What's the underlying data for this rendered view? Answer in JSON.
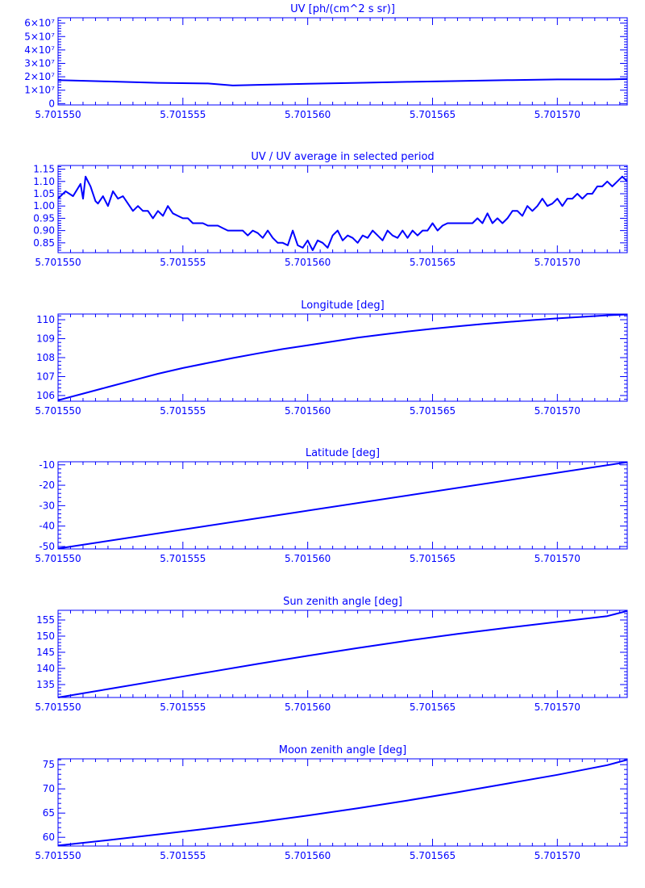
{
  "chart_data": [
    {
      "type": "line",
      "title": "UV [ph/(cm^2 s sr)]",
      "xlabel": "",
      "ylabel": "",
      "x_ticks": [
        "5.701550",
        "5.701555",
        "5.701560",
        "5.701565",
        "5.701570"
      ],
      "x_tick_values": [
        5.70155,
        5.701555,
        5.70156,
        5.701565,
        5.70157
      ],
      "xlim": [
        5.70155,
        5.7015728
      ],
      "ylim": [
        -1000000,
        64000000
      ],
      "y_ticks": [
        "0",
        "1×10⁷",
        "2×10⁷",
        "3×10⁷",
        "4×10⁷",
        "5×10⁷",
        "6×10⁷"
      ],
      "y_tick_values": [
        0,
        10000000,
        20000000,
        30000000,
        40000000,
        50000000,
        60000000
      ],
      "color": "#0000ff",
      "series": [
        {
          "x": [
            5.70155,
            5.701552,
            5.701554,
            5.701556,
            5.701557,
            5.701558,
            5.70156,
            5.701562,
            5.701564,
            5.701566,
            5.701568,
            5.70157,
            5.701572,
            5.7015728
          ],
          "y": [
            17500000,
            16500000,
            15500000,
            15000000,
            13500000,
            14000000,
            14800000,
            15500000,
            16200000,
            16800000,
            17500000,
            18000000,
            18000000,
            18300000
          ]
        }
      ]
    },
    {
      "type": "line",
      "title": "UV / UV average in selected period",
      "xlabel": "",
      "ylabel": "",
      "x_ticks": [
        "5.701550",
        "5.701555",
        "5.701560",
        "5.701565",
        "5.701570"
      ],
      "x_tick_values": [
        5.70155,
        5.701555,
        5.70156,
        5.701565,
        5.70157
      ],
      "xlim": [
        5.70155,
        5.7015728
      ],
      "ylim": [
        0.81,
        1.165
      ],
      "y_ticks": [
        "0.85",
        "0.90",
        "0.95",
        "1.00",
        "1.05",
        "1.10",
        "1.15"
      ],
      "y_tick_values": [
        0.85,
        0.9,
        0.95,
        1.0,
        1.05,
        1.1,
        1.15
      ],
      "color": "#0000ff",
      "series": [
        {
          "x": [
            5.70155,
            5.7015503,
            5.7015506,
            5.7015509,
            5.701551,
            5.7015511,
            5.7015513,
            5.7015515,
            5.7015516,
            5.7015518,
            5.701552,
            5.7015522,
            5.7015524,
            5.7015526,
            5.7015528,
            5.701553,
            5.7015532,
            5.7015534,
            5.7015536,
            5.7015538,
            5.701554,
            5.7015542,
            5.7015544,
            5.7015546,
            5.7015548,
            5.701555,
            5.7015552,
            5.7015554,
            5.7015556,
            5.7015558,
            5.701556,
            5.7015562,
            5.7015564,
            5.7015566,
            5.7015568,
            5.701557,
            5.7015572,
            5.7015574,
            5.7015576,
            5.7015578,
            5.701558,
            5.7015582,
            5.7015584,
            5.7015586,
            5.7015588,
            5.701559,
            5.7015592,
            5.7015594,
            5.7015596,
            5.7015598,
            5.70156,
            5.7015602,
            5.7015604,
            5.7015606,
            5.7015608,
            5.701561,
            5.7015612,
            5.7015614,
            5.7015616,
            5.7015618,
            5.701562,
            5.7015622,
            5.7015624,
            5.7015626,
            5.7015628,
            5.701563,
            5.7015632,
            5.7015634,
            5.7015636,
            5.7015638,
            5.701564,
            5.7015642,
            5.7015644,
            5.7015646,
            5.7015648,
            5.701565,
            5.7015652,
            5.7015654,
            5.7015656,
            5.7015658,
            5.701566,
            5.7015662,
            5.7015664,
            5.7015666,
            5.7015668,
            5.701567,
            5.7015672,
            5.7015674,
            5.7015676,
            5.7015678,
            5.701568,
            5.7015682,
            5.7015684,
            5.7015686,
            5.7015688,
            5.701569,
            5.7015692,
            5.7015694,
            5.7015696,
            5.7015698,
            5.70157,
            5.7015702,
            5.7015704,
            5.7015706,
            5.7015708,
            5.701571,
            5.7015712,
            5.7015714,
            5.7015716,
            5.7015718,
            5.701572,
            5.7015722,
            5.7015724,
            5.7015726,
            5.7015728
          ],
          "y": [
            1.03,
            1.06,
            1.04,
            1.09,
            1.03,
            1.12,
            1.08,
            1.02,
            1.01,
            1.04,
            1.0,
            1.06,
            1.03,
            1.04,
            1.01,
            0.98,
            1.0,
            0.98,
            0.98,
            0.95,
            0.98,
            0.96,
            1.0,
            0.97,
            0.96,
            0.95,
            0.95,
            0.93,
            0.93,
            0.93,
            0.92,
            0.92,
            0.92,
            0.91,
            0.9,
            0.9,
            0.9,
            0.9,
            0.88,
            0.9,
            0.89,
            0.87,
            0.9,
            0.87,
            0.85,
            0.85,
            0.84,
            0.9,
            0.84,
            0.83,
            0.86,
            0.82,
            0.86,
            0.85,
            0.83,
            0.88,
            0.9,
            0.86,
            0.88,
            0.87,
            0.85,
            0.88,
            0.87,
            0.9,
            0.88,
            0.86,
            0.9,
            0.88,
            0.87,
            0.9,
            0.87,
            0.9,
            0.88,
            0.9,
            0.9,
            0.93,
            0.9,
            0.92,
            0.93,
            0.93,
            0.93,
            0.93,
            0.93,
            0.93,
            0.95,
            0.93,
            0.97,
            0.93,
            0.95,
            0.93,
            0.95,
            0.98,
            0.98,
            0.96,
            1.0,
            0.98,
            1.0,
            1.03,
            1.0,
            1.01,
            1.03,
            1.0,
            1.03,
            1.03,
            1.05,
            1.03,
            1.05,
            1.05,
            1.08,
            1.08,
            1.1,
            1.08,
            1.1,
            1.12,
            1.1
          ],
          "_comment_visible": ""
        }
      ]
    },
    {
      "type": "line",
      "title": "Longitude [deg]",
      "xlabel": "",
      "ylabel": "",
      "x_ticks": [
        "5.701550",
        "5.701555",
        "5.701560",
        "5.701565",
        "5.701570"
      ],
      "x_tick_values": [
        5.70155,
        5.701555,
        5.70156,
        5.701565,
        5.70157
      ],
      "xlim": [
        5.70155,
        5.7015728
      ],
      "ylim": [
        105.7,
        110.3
      ],
      "y_ticks": [
        "106",
        "107",
        "108",
        "109",
        "110"
      ],
      "y_tick_values": [
        106,
        107,
        108,
        109,
        110
      ],
      "color": "#0000ff",
      "series": [
        {
          "x": [
            5.70155,
            5.701551,
            5.701552,
            5.701553,
            5.701554,
            5.701555,
            5.701556,
            5.701557,
            5.701558,
            5.701559,
            5.70156,
            5.701561,
            5.701562,
            5.701563,
            5.701564,
            5.701565,
            5.701566,
            5.701567,
            5.701568,
            5.701569,
            5.70157,
            5.701571,
            5.701572,
            5.7015728
          ],
          "y": [
            105.75,
            106.1,
            106.45,
            106.8,
            107.15,
            107.45,
            107.72,
            107.98,
            108.22,
            108.45,
            108.65,
            108.85,
            109.05,
            109.22,
            109.38,
            109.52,
            109.65,
            109.77,
            109.88,
            109.98,
            110.07,
            110.15,
            110.23,
            110.28
          ]
        }
      ]
    },
    {
      "type": "line",
      "title": "Latitude [deg]",
      "xlabel": "",
      "ylabel": "",
      "x_ticks": [
        "5.701550",
        "5.701555",
        "5.701560",
        "5.701565",
        "5.701570"
      ],
      "x_tick_values": [
        5.70155,
        5.701555,
        5.70156,
        5.701565,
        5.70157
      ],
      "xlim": [
        5.70155,
        5.7015728
      ],
      "ylim": [
        -51.2,
        -8.5
      ],
      "y_ticks": [
        "-50",
        "-40",
        "-30",
        "-20",
        "-10"
      ],
      "y_tick_values": [
        -50,
        -40,
        -30,
        -20,
        -10
      ],
      "color": "#0000ff",
      "series": [
        {
          "x": [
            5.70155,
            5.7015728
          ],
          "y": [
            -51.0,
            -8.7
          ]
        }
      ]
    },
    {
      "type": "line",
      "title": "Sun zenith angle [deg]",
      "xlabel": "",
      "ylabel": "",
      "x_ticks": [
        "5.701550",
        "5.701555",
        "5.701560",
        "5.701565",
        "5.701570"
      ],
      "x_tick_values": [
        5.70155,
        5.701555,
        5.70156,
        5.701565,
        5.70157
      ],
      "xlim": [
        5.70155,
        5.7015728
      ],
      "ylim": [
        131.0,
        158.0
      ],
      "y_ticks": [
        "135",
        "140",
        "145",
        "150",
        "155"
      ],
      "y_tick_values": [
        135,
        140,
        145,
        150,
        155
      ],
      "color": "#0000ff",
      "series": [
        {
          "x": [
            5.70155,
            5.701552,
            5.701554,
            5.701556,
            5.701558,
            5.70156,
            5.701562,
            5.701564,
            5.701566,
            5.701568,
            5.70157,
            5.701572,
            5.7015728
          ],
          "y": [
            131.0,
            133.6,
            136.2,
            138.8,
            141.4,
            143.9,
            146.3,
            148.6,
            150.7,
            152.6,
            154.4,
            156.2,
            157.8
          ]
        }
      ]
    },
    {
      "type": "line",
      "title": "Moon zenith angle [deg]",
      "xlabel": "",
      "ylabel": "",
      "x_ticks": [
        "5.701550",
        "5.701555",
        "5.701560",
        "5.701565",
        "5.701570"
      ],
      "x_tick_values": [
        5.70155,
        5.701555,
        5.70156,
        5.701565,
        5.70157
      ],
      "xlim": [
        5.70155,
        5.7015728
      ],
      "ylim": [
        58.2,
        76.2
      ],
      "y_ticks": [
        "60",
        "65",
        "70",
        "75"
      ],
      "y_tick_values": [
        60,
        65,
        70,
        75
      ],
      "color": "#0000ff",
      "series": [
        {
          "x": [
            5.70155,
            5.701552,
            5.701554,
            5.701556,
            5.701558,
            5.70156,
            5.701562,
            5.701564,
            5.701566,
            5.701568,
            5.70157,
            5.701572,
            5.7015728
          ],
          "y": [
            58.3,
            59.4,
            60.6,
            61.8,
            63.1,
            64.5,
            66.0,
            67.6,
            69.3,
            71.1,
            72.9,
            74.9,
            76.0
          ]
        }
      ]
    }
  ]
}
